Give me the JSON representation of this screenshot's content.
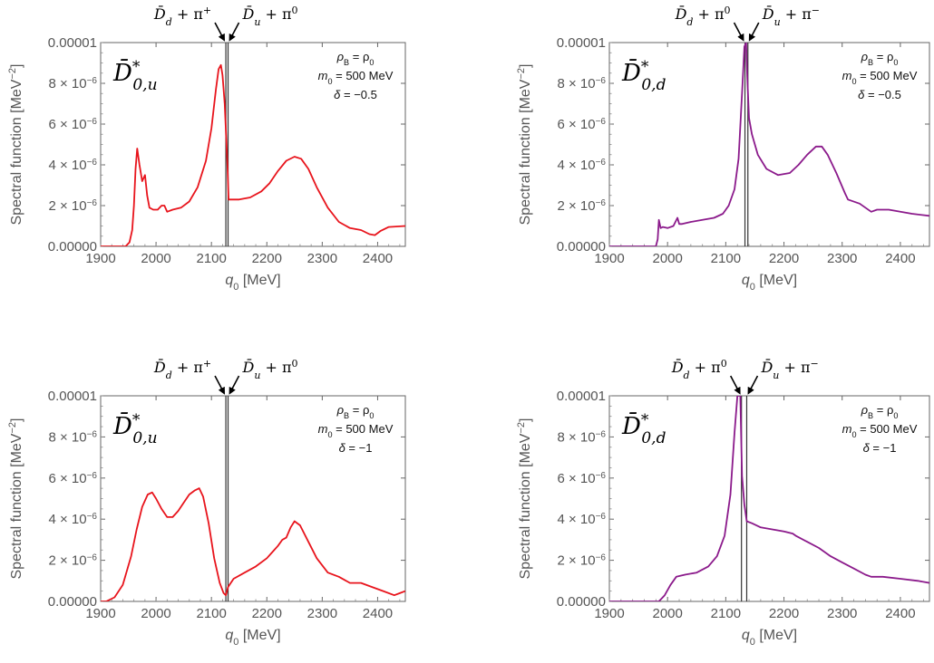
{
  "figure": {
    "panels": 4
  },
  "chart_data": [
    {
      "type": "line",
      "panel": "top-left",
      "color": "#e8141c",
      "ylabel": "Spectral function [MeV",
      "ylabel_exp": "−2",
      "ylabel_close": "]",
      "xlabel": "q",
      "xlabel_sub": "0",
      "xlabel_unit": " [MeV]",
      "xlim": [
        1900,
        2450
      ],
      "ylim": [
        0,
        1e-05
      ],
      "xticks": [
        "1900",
        "2000",
        "2100",
        "2200",
        "2300",
        "2400"
      ],
      "xtick_values": [
        1900,
        2000,
        2100,
        2200,
        2300,
        2400
      ],
      "yticks": [
        {
          "value": 0,
          "mant": "0.00000",
          "exp": ""
        },
        {
          "value": 2e-06,
          "mant": "2 × 10",
          "exp": "−6"
        },
        {
          "value": 4e-06,
          "mant": "4 × 10",
          "exp": "−6"
        },
        {
          "value": 6e-06,
          "mant": "6 × 10",
          "exp": "−6"
        },
        {
          "value": 8e-06,
          "mant": "8 × 10",
          "exp": "−6"
        },
        {
          "value": 1e-05,
          "mant": "0.00001",
          "exp": ""
        }
      ],
      "particle": {
        "base": "D̄",
        "sup": "*",
        "sub": "0,u"
      },
      "params": [
        "ρ_B = ρ_0",
        "m_0 = 500 MeV",
        "δ = −0.5"
      ],
      "thresholds": [
        2126,
        2130
      ],
      "threshold_labels": [
        {
          "text": "D̄",
          "sub": "d",
          "rest": " + π",
          "sup": "+"
        },
        {
          "text": "D̄",
          "sub": "u",
          "rest": " + π",
          "sup": "0"
        }
      ],
      "x": [
        1945,
        1952,
        1957,
        1960,
        1963,
        1966,
        1970,
        1975,
        1980,
        1984,
        1988,
        1995,
        2003,
        2010,
        2015,
        2020,
        2030,
        2045,
        2060,
        2075,
        2090,
        2100,
        2108,
        2113,
        2117,
        2120,
        2124,
        2129,
        2131,
        2150,
        2170,
        2190,
        2205,
        2220,
        2235,
        2250,
        2262,
        2275,
        2290,
        2310,
        2330,
        2350,
        2360,
        2370,
        2385,
        2395,
        2405,
        2420,
        2450
      ],
      "y": [
        0,
        2e-07,
        8e-07,
        2e-06,
        3.8e-06,
        4.8e-06,
        4e-06,
        3.2e-06,
        3.5e-06,
        2.5e-06,
        1.9e-06,
        1.8e-06,
        1.8e-06,
        2e-06,
        2e-06,
        1.7e-06,
        1.8e-06,
        1.9e-06,
        2.2e-06,
        2.9e-06,
        4.2e-06,
        5.8e-06,
        7.7e-06,
        8.7e-06,
        8.9e-06,
        8.4e-06,
        7e-06,
        3.9e-06,
        2.3e-06,
        2.3e-06,
        2.4e-06,
        2.7e-06,
        3.1e-06,
        3.7e-06,
        4.2e-06,
        4.4e-06,
        4.3e-06,
        3.8e-06,
        2.9e-06,
        1.9e-06,
        1.2e-06,
        9e-07,
        8.5e-07,
        8e-07,
        6e-07,
        5.5e-07,
        7.5e-07,
        9.5e-07,
        1e-06
      ]
    },
    {
      "type": "line",
      "panel": "top-right",
      "color": "#8b1a8b",
      "ylabel": "Spectral function [MeV",
      "ylabel_exp": "−2",
      "ylabel_close": "]",
      "xlabel": "q",
      "xlabel_sub": "0",
      "xlabel_unit": " [MeV]",
      "xlim": [
        1900,
        2450
      ],
      "ylim": [
        0,
        1e-05
      ],
      "xticks": [
        "1900",
        "2000",
        "2100",
        "2200",
        "2300",
        "2400"
      ],
      "xtick_values": [
        1900,
        2000,
        2100,
        2200,
        2300,
        2400
      ],
      "yticks": [
        {
          "value": 0,
          "mant": "0.00000",
          "exp": ""
        },
        {
          "value": 2e-06,
          "mant": "2 × 10",
          "exp": "−6"
        },
        {
          "value": 4e-06,
          "mant": "4 × 10",
          "exp": "−6"
        },
        {
          "value": 6e-06,
          "mant": "6 × 10",
          "exp": "−6"
        },
        {
          "value": 8e-06,
          "mant": "8 × 10",
          "exp": "−6"
        },
        {
          "value": 1e-05,
          "mant": "0.00001",
          "exp": ""
        }
      ],
      "particle": {
        "base": "D̄",
        "sup": "*",
        "sub": "0,d"
      },
      "params": [
        "ρ_B = ρ_0",
        "m_0 = 500 MeV",
        "δ = −0.5"
      ],
      "thresholds": [
        2133,
        2138
      ],
      "threshold_labels": [
        {
          "text": "D̄",
          "sub": "d",
          "rest": " + π",
          "sup": "0"
        },
        {
          "text": "D̄",
          "sub": "u",
          "rest": " + π",
          "sup": "−"
        }
      ],
      "x": [
        1980,
        1983,
        1985,
        1988,
        1992,
        2000,
        2010,
        2017,
        2020,
        2025,
        2040,
        2060,
        2080,
        2095,
        2105,
        2115,
        2122,
        2128,
        2132,
        2135,
        2137,
        2140,
        2145,
        2155,
        2170,
        2190,
        2210,
        2225,
        2240,
        2255,
        2265,
        2275,
        2290,
        2305,
        2310,
        2330,
        2350,
        2360,
        2380,
        2420,
        2450
      ],
      "y": [
        0,
        3.5e-07,
        1.3e-06,
        9e-07,
        9.5e-07,
        9e-07,
        1e-06,
        1.4e-06,
        1.1e-06,
        1.1e-06,
        1.2e-06,
        1.3e-06,
        1.4e-06,
        1.6e-06,
        2e-06,
        2.8e-06,
        4.3e-06,
        7.5e-06,
        9.8e-06,
        1e-05,
        8.3e-06,
        6.3e-06,
        5.5e-06,
        4.5e-06,
        3.8e-06,
        3.5e-06,
        3.6e-06,
        4e-06,
        4.5e-06,
        4.9e-06,
        4.9e-06,
        4.5e-06,
        3.6e-06,
        2.6e-06,
        2.3e-06,
        2.1e-06,
        1.7e-06,
        1.8e-06,
        1.8e-06,
        1.6e-06,
        1.5e-06
      ]
    },
    {
      "type": "line",
      "panel": "bottom-left",
      "color": "#e8141c",
      "ylabel": "Spectral function [MeV",
      "ylabel_exp": "−2",
      "ylabel_close": "]",
      "xlabel": "q",
      "xlabel_sub": "0",
      "xlabel_unit": " [MeV]",
      "xlim": [
        1900,
        2450
      ],
      "ylim": [
        0,
        1e-05
      ],
      "xticks": [
        "1900",
        "2000",
        "2100",
        "2200",
        "2300",
        "2400"
      ],
      "xtick_values": [
        1900,
        2000,
        2100,
        2200,
        2300,
        2400
      ],
      "yticks": [
        {
          "value": 0,
          "mant": "0.00000",
          "exp": ""
        },
        {
          "value": 2e-06,
          "mant": "2 × 10",
          "exp": "−6"
        },
        {
          "value": 4e-06,
          "mant": "4 × 10",
          "exp": "−6"
        },
        {
          "value": 6e-06,
          "mant": "6 × 10",
          "exp": "−6"
        },
        {
          "value": 8e-06,
          "mant": "8 × 10",
          "exp": "−6"
        },
        {
          "value": 1e-05,
          "mant": "0.00001",
          "exp": ""
        }
      ],
      "particle": {
        "base": "D̄",
        "sup": "*",
        "sub": "0,u"
      },
      "params": [
        "ρ_B = ρ_0",
        "m_0 = 500 MeV",
        "δ = −1"
      ],
      "thresholds": [
        2126,
        2130
      ],
      "threshold_labels": [
        {
          "text": "D̄",
          "sub": "d",
          "rest": " + π",
          "sup": "+"
        },
        {
          "text": "D̄",
          "sub": "u",
          "rest": " + π",
          "sup": "0"
        }
      ],
      "x": [
        1910,
        1925,
        1940,
        1955,
        1965,
        1975,
        1985,
        1993,
        2000,
        2010,
        2020,
        2030,
        2040,
        2050,
        2060,
        2070,
        2078,
        2085,
        2095,
        2105,
        2115,
        2122,
        2126,
        2130,
        2140,
        2160,
        2180,
        2200,
        2210,
        2220,
        2228,
        2235,
        2243,
        2250,
        2260,
        2275,
        2290,
        2310,
        2330,
        2350,
        2370,
        2390,
        2410,
        2430,
        2440,
        2450
      ],
      "y": [
        0,
        2e-07,
        8e-07,
        2.2e-06,
        3.5e-06,
        4.6e-06,
        5.2e-06,
        5.3e-06,
        5e-06,
        4.5e-06,
        4.1e-06,
        4.1e-06,
        4.4e-06,
        4.8e-06,
        5.2e-06,
        5.4e-06,
        5.5e-06,
        5.1e-06,
        3.8e-06,
        2.1e-06,
        9e-07,
        4e-07,
        3e-07,
        7e-07,
        1.1e-06,
        1.4e-06,
        1.7e-06,
        2.1e-06,
        2.4e-06,
        2.7e-06,
        3e-06,
        3.1e-06,
        3.6e-06,
        3.9e-06,
        3.7e-06,
        2.9e-06,
        2.1e-06,
        1.4e-06,
        1.2e-06,
        9e-07,
        9e-07,
        7e-07,
        5e-07,
        3e-07,
        4e-07,
        5e-07
      ]
    },
    {
      "type": "line",
      "panel": "bottom-right",
      "color": "#8b1a8b",
      "ylabel": "Spectral function [MeV",
      "ylabel_exp": "−2",
      "ylabel_close": "]",
      "xlabel": "q",
      "xlabel_sub": "0",
      "xlabel_unit": " [MeV]",
      "xlim": [
        1900,
        2450
      ],
      "ylim": [
        0,
        1e-05
      ],
      "xticks": [
        "1900",
        "2000",
        "2100",
        "2200",
        "2300",
        "2400"
      ],
      "xtick_values": [
        1900,
        2000,
        2100,
        2200,
        2300,
        2400
      ],
      "yticks": [
        {
          "value": 0,
          "mant": "0.00000",
          "exp": ""
        },
        {
          "value": 2e-06,
          "mant": "2 × 10",
          "exp": "−6"
        },
        {
          "value": 4e-06,
          "mant": "4 × 10",
          "exp": "−6"
        },
        {
          "value": 6e-06,
          "mant": "6 × 10",
          "exp": "−6"
        },
        {
          "value": 8e-06,
          "mant": "8 × 10",
          "exp": "−6"
        },
        {
          "value": 1e-05,
          "mant": "0.00001",
          "exp": ""
        }
      ],
      "particle": {
        "base": "D̄",
        "sup": "*",
        "sub": "0,d"
      },
      "params": [
        "ρ_B = ρ_0",
        "m_0 = 500 MeV",
        "δ = −1"
      ],
      "thresholds": [
        2127,
        2136
      ],
      "threshold_labels": [
        {
          "text": "D̄",
          "sub": "d",
          "rest": " + π",
          "sup": "0"
        },
        {
          "text": "D̄",
          "sub": "u",
          "rest": " + π",
          "sup": "−"
        }
      ],
      "x": [
        1985,
        1995,
        2005,
        2015,
        2030,
        2050,
        2070,
        2085,
        2098,
        2108,
        2115,
        2120,
        2125,
        2128,
        2132,
        2136,
        2145,
        2160,
        2180,
        2200,
        2215,
        2220,
        2240,
        2260,
        2280,
        2300,
        2320,
        2340,
        2350,
        2370,
        2400,
        2430,
        2450
      ],
      "y": [
        0,
        3e-07,
        8e-07,
        1.2e-06,
        1.3e-06,
        1.4e-06,
        1.7e-06,
        2.2e-06,
        3.2e-06,
        5.2e-06,
        8.2e-06,
        1e-05,
        1e-05,
        6.1e-06,
        4.7e-06,
        3.9e-06,
        3.8e-06,
        3.6e-06,
        3.5e-06,
        3.4e-06,
        3.3e-06,
        3.2e-06,
        2.9e-06,
        2.6e-06,
        2.2e-06,
        1.9e-06,
        1.6e-06,
        1.3e-06,
        1.2e-06,
        1.2e-06,
        1.1e-06,
        1e-06,
        9e-07
      ]
    }
  ]
}
